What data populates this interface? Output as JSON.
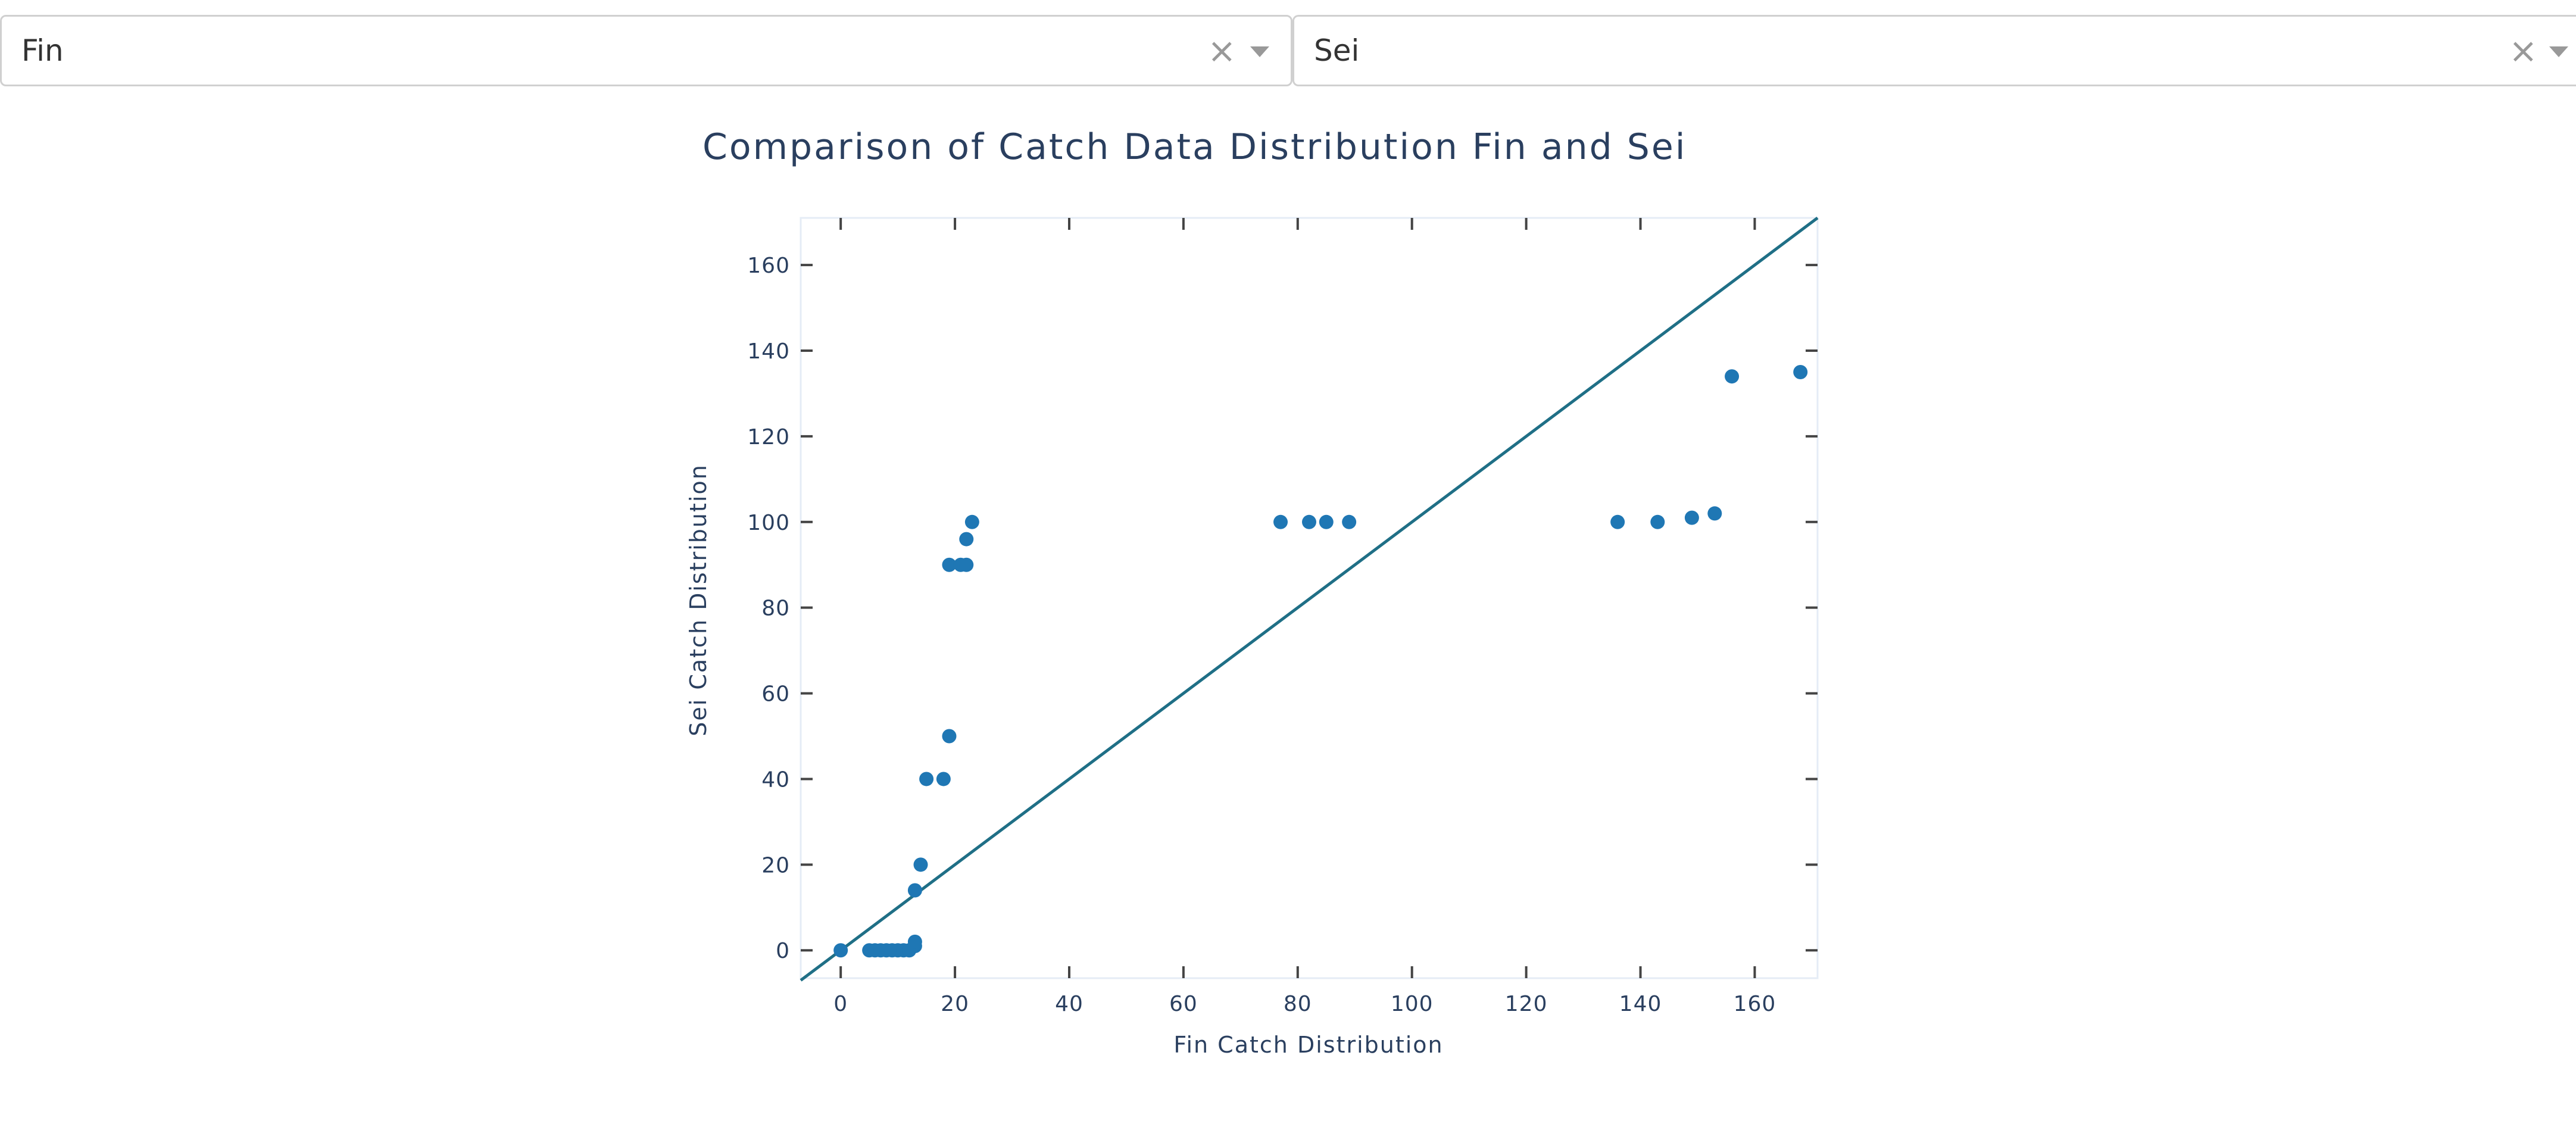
{
  "dropdowns": [
    {
      "value": "Fin",
      "clear_icon": "close-icon",
      "caret_icon": "chevron-down-icon"
    },
    {
      "value": "Sei",
      "clear_icon": "close-icon",
      "caret_icon": "chevron-down-icon"
    }
  ],
  "chart_data": {
    "type": "scatter",
    "title": "Comparison of Catch Data Distribution Fin and Sei",
    "xlabel": "Fin Catch Distribution",
    "ylabel": "Sei Catch Distribution",
    "xlim": [
      -7,
      171
    ],
    "ylim": [
      -6.5,
      171
    ],
    "x_ticks": [
      0,
      20,
      40,
      60,
      80,
      100,
      120,
      140,
      160
    ],
    "y_ticks": [
      0,
      20,
      40,
      60,
      80,
      100,
      120,
      140,
      160
    ],
    "grid": false,
    "marker_color": "#1f77b4",
    "line_color": "#1f6f86",
    "reference_line": {
      "type": "identity",
      "x": [
        -7,
        171
      ],
      "y": [
        -7,
        171
      ]
    },
    "points": [
      {
        "x": 0,
        "y": 0
      },
      {
        "x": 5,
        "y": 0
      },
      {
        "x": 6,
        "y": 0
      },
      {
        "x": 7,
        "y": 0
      },
      {
        "x": 8,
        "y": 0
      },
      {
        "x": 9,
        "y": 0
      },
      {
        "x": 10,
        "y": 0
      },
      {
        "x": 11,
        "y": 0
      },
      {
        "x": 12,
        "y": 0
      },
      {
        "x": 13,
        "y": 1
      },
      {
        "x": 13,
        "y": 2
      },
      {
        "x": 13,
        "y": 14
      },
      {
        "x": 14,
        "y": 20
      },
      {
        "x": 15,
        "y": 40
      },
      {
        "x": 18,
        "y": 40
      },
      {
        "x": 19,
        "y": 50
      },
      {
        "x": 19,
        "y": 90
      },
      {
        "x": 21,
        "y": 90
      },
      {
        "x": 22,
        "y": 90
      },
      {
        "x": 22,
        "y": 96
      },
      {
        "x": 23,
        "y": 100
      },
      {
        "x": 77,
        "y": 100
      },
      {
        "x": 82,
        "y": 100
      },
      {
        "x": 85,
        "y": 100
      },
      {
        "x": 89,
        "y": 100
      },
      {
        "x": 136,
        "y": 100
      },
      {
        "x": 143,
        "y": 100
      },
      {
        "x": 149,
        "y": 101
      },
      {
        "x": 153,
        "y": 102
      },
      {
        "x": 156,
        "y": 134
      },
      {
        "x": 168,
        "y": 135
      }
    ]
  }
}
